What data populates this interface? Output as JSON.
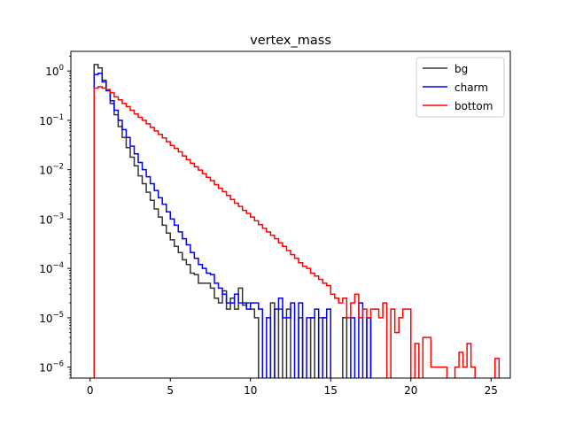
{
  "chart_data": {
    "type": "line",
    "title": "vertex_mass",
    "xlabel": "",
    "ylabel": "",
    "xlim": [
      -1.2,
      26.2
    ],
    "ylim": [
      6e-07,
      2.5
    ],
    "yscale": "log",
    "grid": false,
    "legend_position": "top-right",
    "x_ticks": [
      {
        "value": 0,
        "label": "0"
      },
      {
        "value": 5,
        "label": "5"
      },
      {
        "value": 10,
        "label": "10"
      },
      {
        "value": 15,
        "label": "15"
      },
      {
        "value": 20,
        "label": "20"
      },
      {
        "value": 25,
        "label": "25"
      }
    ],
    "y_ticks": [
      {
        "value": 1,
        "base": "10",
        "exp": "0"
      },
      {
        "value": 0.1,
        "base": "10",
        "exp": "−1"
      },
      {
        "value": 0.01,
        "base": "10",
        "exp": "−2"
      },
      {
        "value": 0.001,
        "base": "10",
        "exp": "−3"
      },
      {
        "value": 0.0001,
        "base": "10",
        "exp": "−4"
      },
      {
        "value": 1e-05,
        "base": "10",
        "exp": "−5"
      },
      {
        "value": 1e-06,
        "base": "10",
        "exp": "−6"
      }
    ],
    "bin_start": 0.25,
    "bin_width": 0.25,
    "series": [
      {
        "name": "bg",
        "color": "#333333",
        "values": [
          1.35,
          1.15,
          0.65,
          0.4,
          0.22,
          0.13,
          0.075,
          0.045,
          0.028,
          0.018,
          0.012,
          0.0075,
          0.0052,
          0.0035,
          0.0024,
          0.0016,
          0.0011,
          0.00075,
          0.00052,
          0.00038,
          0.00028,
          0.00021,
          0.00015,
          0.00012,
          8e-05,
          7.5e-05,
          5e-05,
          5e-05,
          5e-05,
          4e-05,
          2.5e-05,
          2e-05,
          3.5e-05,
          1.5e-05,
          2.5e-05,
          1.5e-05,
          4e-05,
          1.8e-05,
          2e-05,
          1.5e-05,
          1e-05,
          0,
          0,
          0,
          2e-05,
          0,
          1.5e-05,
          0,
          1.5e-05,
          0,
          0,
          1e-05,
          0,
          0,
          1e-05,
          0,
          1e-05,
          1e-05,
          0,
          0,
          0,
          0,
          1e-05,
          0,
          0,
          0,
          0,
          0,
          1e-05
        ]
      },
      {
        "name": "charm",
        "color": "#0000ff",
        "values": [
          0.85,
          0.9,
          0.6,
          0.4,
          0.25,
          0.16,
          0.1,
          0.065,
          0.045,
          0.03,
          0.021,
          0.014,
          0.01,
          0.0072,
          0.0052,
          0.0038,
          0.0027,
          0.002,
          0.0014,
          0.001,
          0.00075,
          0.00055,
          0.0004,
          0.0003,
          0.00021,
          0.00016,
          0.00012,
          0.0001,
          8e-05,
          7.5e-05,
          5e-05,
          4e-05,
          3e-05,
          2e-05,
          2e-05,
          3e-05,
          2e-05,
          2e-05,
          1.5e-05,
          2e-05,
          2e-05,
          1.5e-05,
          0,
          1e-05,
          0,
          1.5e-05,
          2.5e-05,
          1e-05,
          1e-05,
          2e-05,
          0,
          2e-05,
          0,
          1e-05,
          1e-05,
          1.5e-05,
          0,
          1e-05,
          1.5e-05,
          0,
          0,
          0,
          0,
          0,
          1e-05,
          0,
          2e-05,
          0,
          1e-05
        ]
      },
      {
        "name": "bottom",
        "color": "#ff0000",
        "values": [
          0.45,
          0.48,
          0.45,
          0.42,
          0.36,
          0.3,
          0.26,
          0.22,
          0.19,
          0.16,
          0.135,
          0.115,
          0.1,
          0.085,
          0.072,
          0.061,
          0.052,
          0.044,
          0.037,
          0.031,
          0.027,
          0.023,
          0.019,
          0.016,
          0.0135,
          0.0115,
          0.0098,
          0.0083,
          0.007,
          0.006,
          0.005,
          0.0042,
          0.0036,
          0.003,
          0.0025,
          0.0021,
          0.0018,
          0.0015,
          0.0013,
          0.0011,
          0.00092,
          0.00077,
          0.00065,
          0.00055,
          0.00047,
          0.0004,
          0.00033,
          0.00028,
          0.00023,
          0.00019,
          0.00016,
          0.00013,
          0.00011,
          0.0001,
          8e-05,
          7e-05,
          6e-05,
          5e-05,
          4.5e-05,
          3e-05,
          2.5e-05,
          2e-05,
          2.5e-05,
          1e-05,
          2e-05,
          3e-05,
          1e-05,
          1.5e-05,
          1e-05,
          1.5e-05,
          1.5e-05,
          1e-05,
          2e-05,
          0,
          1.5e-05,
          5e-06,
          1e-05,
          1.5e-05,
          1.5e-05,
          0,
          3e-06,
          0,
          4e-06,
          4e-06,
          1e-06,
          1e-06,
          1e-06,
          1e-06,
          0,
          0,
          1e-06,
          2e-06,
          1e-06,
          3e-06,
          1e-06,
          0,
          0,
          0,
          0,
          0,
          1.5e-06,
          0,
          0,
          0,
          1.4e-06,
          0,
          0,
          0,
          0,
          0,
          0,
          0,
          0,
          0,
          0,
          0,
          0,
          0,
          0,
          0,
          0,
          0,
          0,
          0,
          0,
          0,
          0,
          0,
          0,
          0,
          0,
          0,
          0,
          0,
          0,
          0,
          0,
          0,
          0,
          0,
          0,
          0,
          0,
          0,
          0,
          0,
          0,
          0,
          0,
          0,
          0,
          0,
          0,
          0,
          0,
          0,
          0,
          0,
          0,
          0,
          0,
          0
        ]
      }
    ]
  }
}
